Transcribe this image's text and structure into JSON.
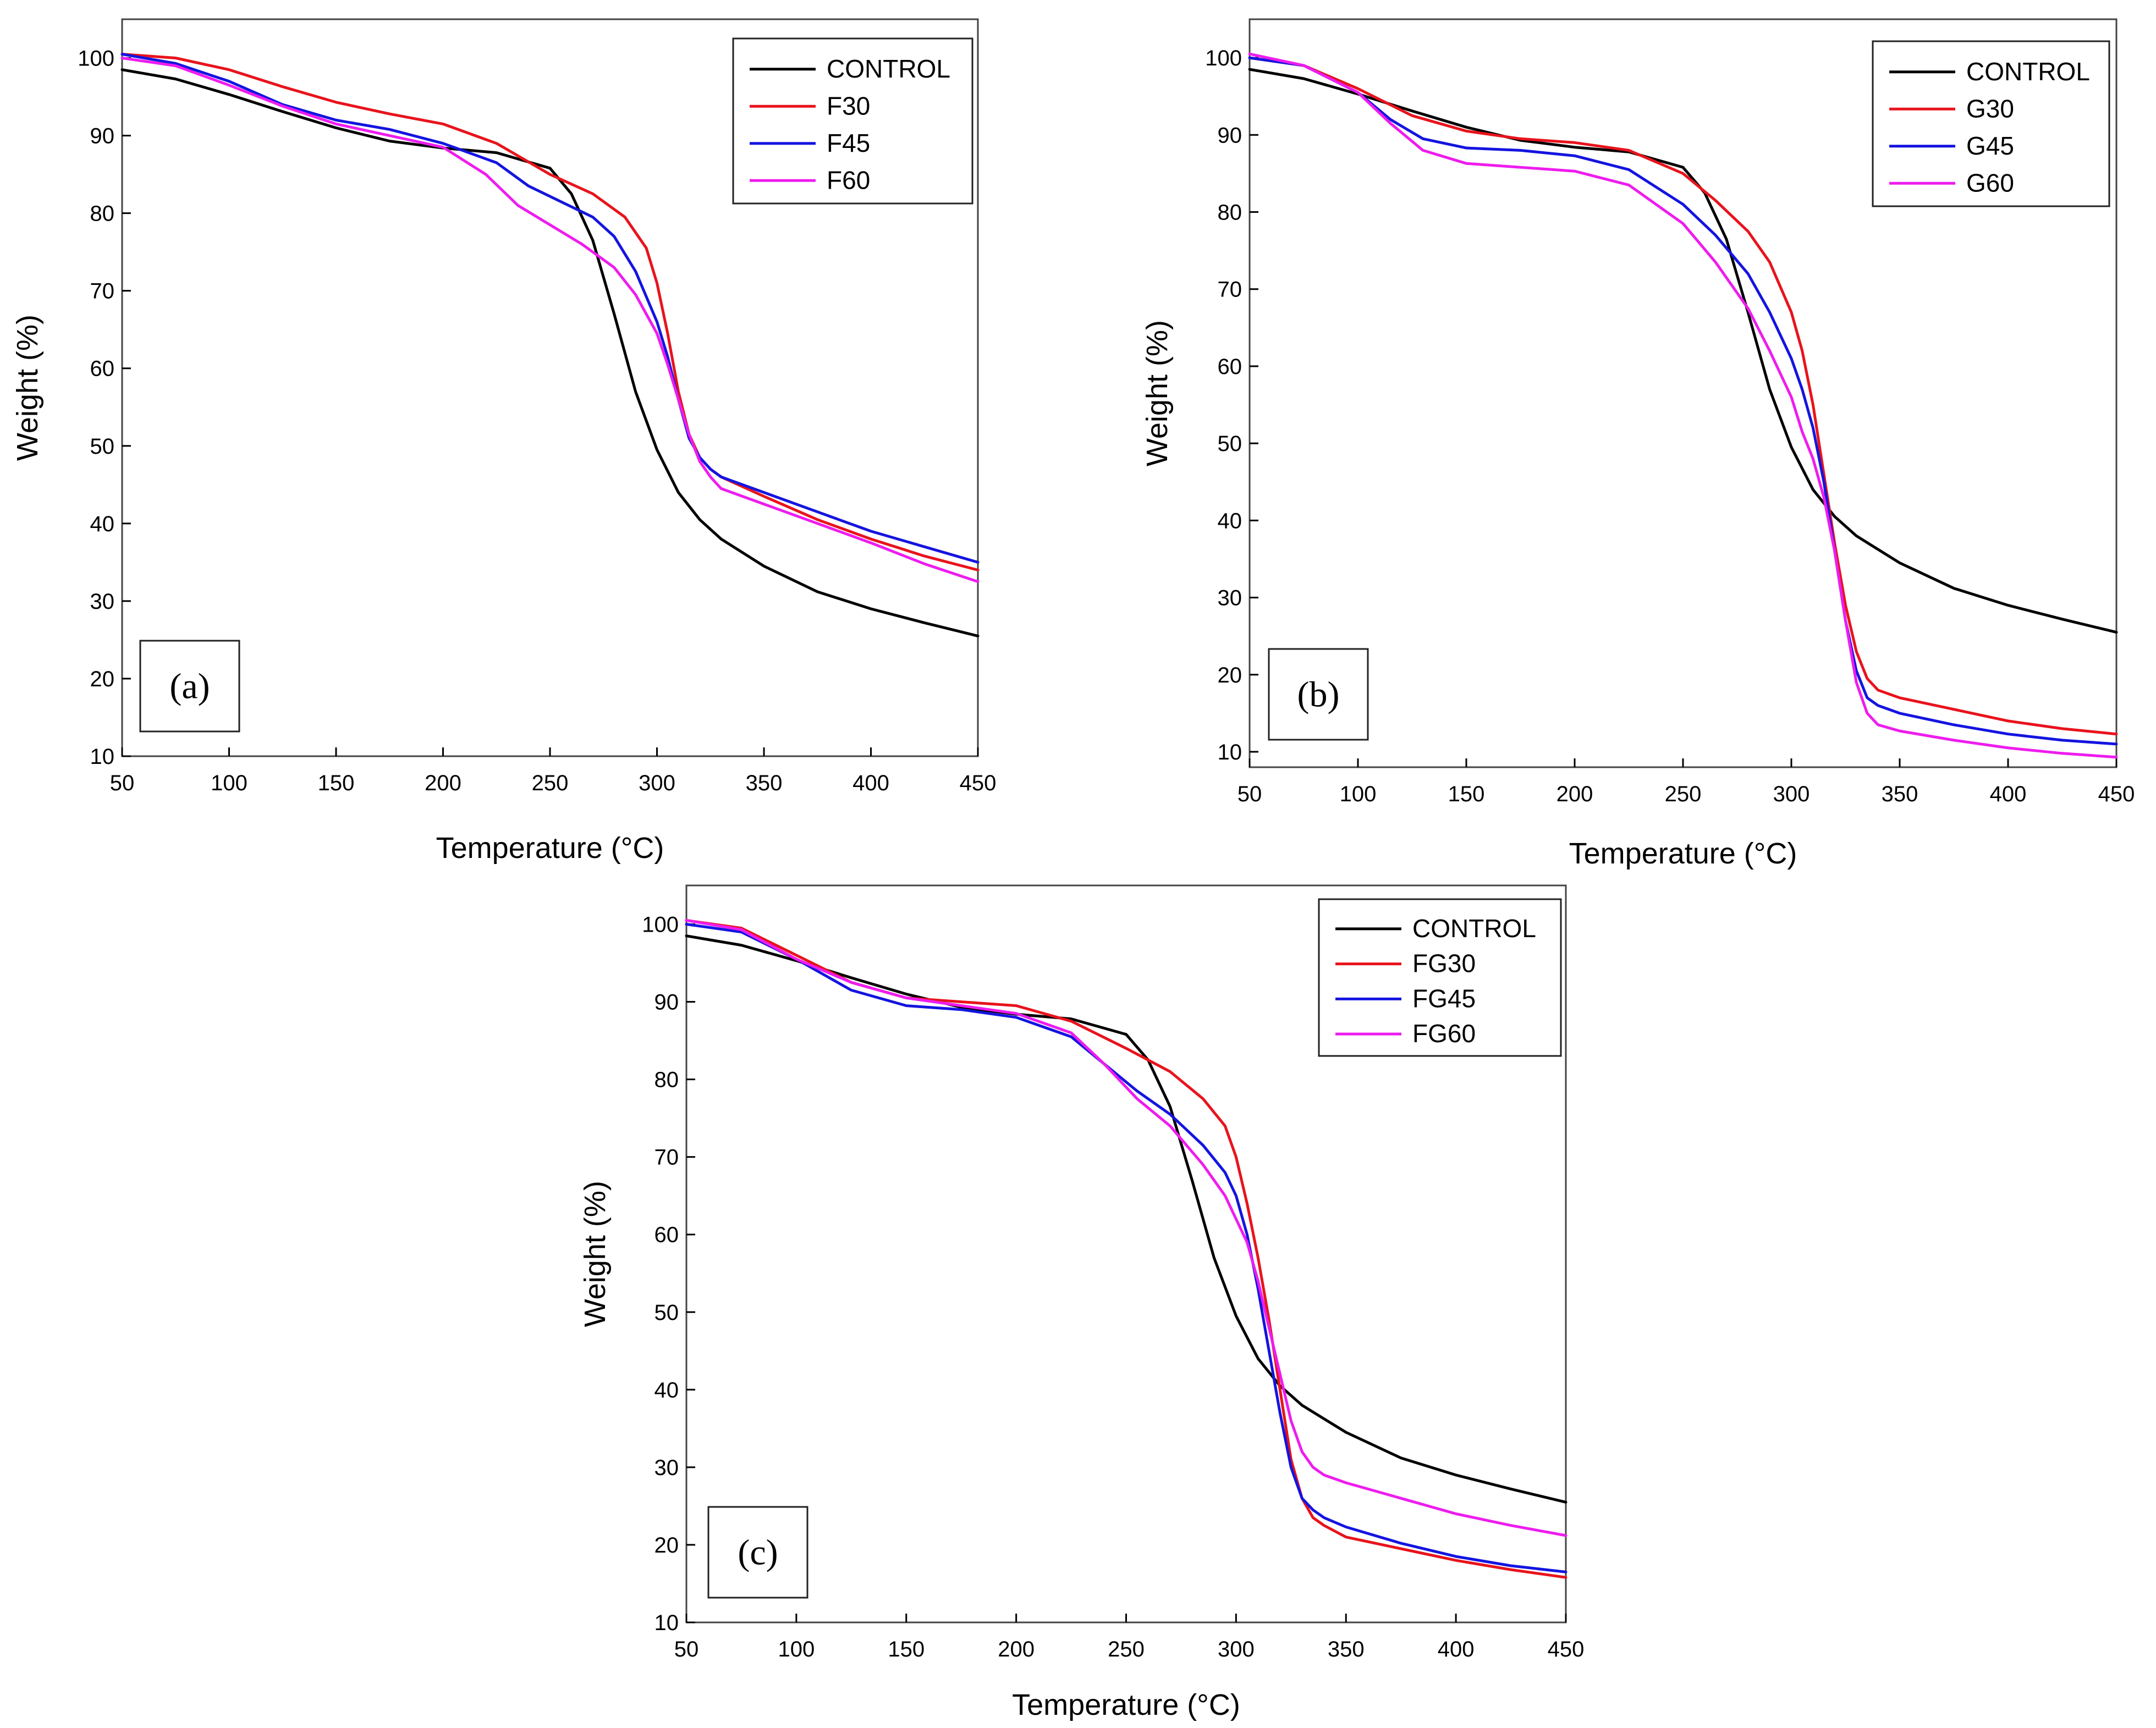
{
  "chart_data": [
    {
      "type": "line",
      "panel_label": "(a)",
      "xlabel": "Temperature (°C)",
      "ylabel": "Weight (%)",
      "xlim": [
        50,
        450
      ],
      "ylim": [
        10,
        105
      ],
      "xticks": [
        50,
        100,
        150,
        200,
        250,
        300,
        350,
        400,
        450
      ],
      "yticks": [
        10,
        20,
        30,
        40,
        50,
        60,
        70,
        80,
        90,
        100
      ],
      "legend_position": "top-right",
      "series": [
        {
          "name": "CONTROL",
          "color": "#000000",
          "x": [
            50,
            75,
            100,
            125,
            150,
            175,
            200,
            225,
            250,
            260,
            270,
            280,
            290,
            300,
            310,
            320,
            330,
            350,
            375,
            400,
            425,
            450
          ],
          "y": [
            98.5,
            97.3,
            95.3,
            93.1,
            91,
            89.3,
            88.4,
            87.8,
            85.8,
            82.5,
            76.5,
            67,
            57,
            49.5,
            44,
            40.5,
            38,
            34.5,
            31.2,
            29,
            27.2,
            25.5
          ]
        },
        {
          "name": "F30",
          "color": "#e8131c",
          "x": [
            50,
            75,
            100,
            125,
            150,
            175,
            200,
            225,
            250,
            270,
            285,
            295,
            300,
            305,
            310,
            315,
            320,
            325,
            330,
            350,
            375,
            400,
            425,
            450
          ],
          "y": [
            100.5,
            100,
            98.5,
            96.3,
            94.3,
            92.8,
            91.5,
            89,
            85,
            82.5,
            79.5,
            75.5,
            71,
            64.5,
            57,
            51.5,
            48.5,
            47,
            46,
            43.5,
            40.5,
            38,
            35.8,
            34
          ]
        },
        {
          "name": "F45",
          "color": "#1414e0",
          "x": [
            50,
            75,
            100,
            125,
            150,
            175,
            200,
            225,
            240,
            255,
            270,
            280,
            290,
            300,
            305,
            310,
            315,
            320,
            325,
            330,
            350,
            375,
            400,
            425,
            450
          ],
          "y": [
            100.5,
            99.3,
            97,
            94,
            92,
            90.8,
            89,
            86.5,
            83.5,
            81.5,
            79.5,
            77,
            72.5,
            66,
            61.5,
            56,
            51,
            48.5,
            47,
            46,
            44,
            41.5,
            39,
            37,
            35
          ]
        },
        {
          "name": "F60",
          "color": "#ee1cee",
          "x": [
            50,
            75,
            100,
            125,
            150,
            175,
            200,
            220,
            235,
            250,
            265,
            280,
            290,
            300,
            305,
            310,
            315,
            320,
            325,
            330,
            350,
            375,
            400,
            425,
            450
          ],
          "y": [
            100,
            99,
            96.5,
            93.8,
            91.5,
            90,
            88.5,
            85,
            81,
            78.5,
            76,
            73,
            69.5,
            64.5,
            60.5,
            56,
            51.5,
            48,
            46,
            44.5,
            42.5,
            40,
            37.5,
            34.8,
            32.5
          ]
        }
      ]
    },
    {
      "type": "line",
      "panel_label": "(b)",
      "xlabel": "Temperature (°C)",
      "ylabel": "Weight (%)",
      "xlim": [
        50,
        450
      ],
      "ylim": [
        8,
        105
      ],
      "xticks": [
        50,
        100,
        150,
        200,
        250,
        300,
        350,
        400,
        450
      ],
      "yticks": [
        10,
        20,
        30,
        40,
        50,
        60,
        70,
        80,
        90,
        100
      ],
      "legend_position": "top-right",
      "series": [
        {
          "name": "CONTROL",
          "color": "#000000",
          "x": [
            50,
            75,
            100,
            125,
            150,
            175,
            200,
            225,
            250,
            260,
            270,
            280,
            290,
            300,
            310,
            320,
            330,
            350,
            375,
            400,
            425,
            450
          ],
          "y": [
            98.5,
            97.3,
            95.3,
            93.1,
            91,
            89.3,
            88.4,
            87.8,
            85.8,
            82.5,
            76.5,
            67,
            57,
            49.5,
            44,
            40.5,
            38,
            34.5,
            31.2,
            29,
            27.2,
            25.5
          ]
        },
        {
          "name": "G30",
          "color": "#e8131c",
          "x": [
            50,
            75,
            100,
            125,
            150,
            175,
            200,
            225,
            250,
            265,
            280,
            290,
            300,
            305,
            310,
            315,
            320,
            325,
            330,
            335,
            340,
            350,
            375,
            400,
            425,
            450
          ],
          "y": [
            100,
            99,
            96,
            92.5,
            90.5,
            89.5,
            89,
            88,
            85,
            81.5,
            77.5,
            73.5,
            67,
            62,
            55,
            46,
            37,
            29,
            23,
            19.5,
            18,
            17,
            15.5,
            14,
            13,
            12.3
          ]
        },
        {
          "name": "G45",
          "color": "#1414e0",
          "x": [
            50,
            75,
            100,
            115,
            130,
            150,
            175,
            200,
            225,
            250,
            265,
            280,
            290,
            300,
            305,
            310,
            315,
            320,
            325,
            330,
            335,
            340,
            350,
            375,
            400,
            425,
            450
          ],
          "y": [
            100,
            99,
            95.5,
            92,
            89.5,
            88.3,
            88,
            87.3,
            85.5,
            81,
            77,
            72,
            67,
            61,
            57,
            52,
            45,
            36,
            27,
            20.5,
            17,
            16,
            15,
            13.5,
            12.3,
            11.5,
            11
          ]
        },
        {
          "name": "G60",
          "color": "#ee1cee",
          "x": [
            50,
            75,
            100,
            115,
            130,
            150,
            175,
            200,
            225,
            250,
            265,
            280,
            290,
            300,
            305,
            310,
            315,
            320,
            325,
            330,
            335,
            340,
            350,
            375,
            400,
            425,
            450
          ],
          "y": [
            100.5,
            99,
            95.5,
            91.5,
            88,
            86.3,
            85.8,
            85.3,
            83.5,
            78.5,
            73.5,
            67.5,
            62,
            56,
            51.5,
            48,
            43,
            36,
            27,
            19,
            15,
            13.5,
            12.7,
            11.5,
            10.5,
            9.8,
            9.3
          ]
        }
      ]
    },
    {
      "type": "line",
      "panel_label": "(c)",
      "xlabel": "Temperature (°C)",
      "ylabel": "Weight (%)",
      "xlim": [
        50,
        450
      ],
      "ylim": [
        10,
        105
      ],
      "xticks": [
        50,
        100,
        150,
        200,
        250,
        300,
        350,
        400,
        450
      ],
      "yticks": [
        10,
        20,
        30,
        40,
        50,
        60,
        70,
        80,
        90,
        100
      ],
      "legend_position": "top-right",
      "series": [
        {
          "name": "CONTROL",
          "color": "#000000",
          "x": [
            50,
            75,
            100,
            125,
            150,
            175,
            200,
            225,
            250,
            260,
            270,
            280,
            290,
            300,
            310,
            320,
            330,
            350,
            375,
            400,
            425,
            450
          ],
          "y": [
            98.5,
            97.3,
            95.3,
            93.1,
            91,
            89.3,
            88.4,
            87.8,
            85.8,
            82.5,
            76.5,
            67,
            57,
            49.5,
            44,
            40.5,
            38,
            34.5,
            31.2,
            29,
            27.2,
            25.5
          ]
        },
        {
          "name": "FG30",
          "color": "#e8131c",
          "x": [
            50,
            75,
            100,
            125,
            150,
            175,
            200,
            225,
            250,
            270,
            285,
            295,
            300,
            305,
            310,
            315,
            320,
            325,
            330,
            335,
            340,
            350,
            375,
            400,
            425,
            450
          ],
          "y": [
            100.5,
            99.5,
            96,
            92.5,
            90.5,
            90,
            89.5,
            87.5,
            84,
            81,
            77.5,
            74,
            70,
            64,
            57,
            49,
            40,
            31,
            26,
            23.5,
            22.5,
            21,
            19.5,
            18,
            16.8,
            15.8
          ]
        },
        {
          "name": "FG45",
          "color": "#1414e0",
          "x": [
            50,
            75,
            100,
            125,
            150,
            175,
            200,
            225,
            240,
            255,
            270,
            285,
            295,
            300,
            305,
            310,
            315,
            320,
            325,
            330,
            335,
            340,
            350,
            375,
            400,
            425,
            450
          ],
          "y": [
            100,
            99,
            95.5,
            91.5,
            89.5,
            89,
            88,
            85.5,
            82,
            78.5,
            75.5,
            71.5,
            68,
            65,
            60,
            53,
            45,
            37,
            30,
            26,
            24.5,
            23.5,
            22.3,
            20.2,
            18.5,
            17.3,
            16.5
          ]
        },
        {
          "name": "FG60",
          "color": "#ee1cee",
          "x": [
            50,
            75,
            100,
            125,
            150,
            175,
            200,
            225,
            240,
            255,
            270,
            285,
            295,
            305,
            310,
            315,
            320,
            325,
            330,
            335,
            340,
            350,
            375,
            400,
            425,
            450
          ],
          "y": [
            100.5,
            99.3,
            95.5,
            92.5,
            90.5,
            89.5,
            88.5,
            86,
            82,
            77.5,
            74,
            69,
            65,
            59,
            54,
            48,
            42,
            36,
            32,
            30,
            29,
            28,
            26,
            24,
            22.5,
            21.2
          ]
        }
      ]
    }
  ]
}
